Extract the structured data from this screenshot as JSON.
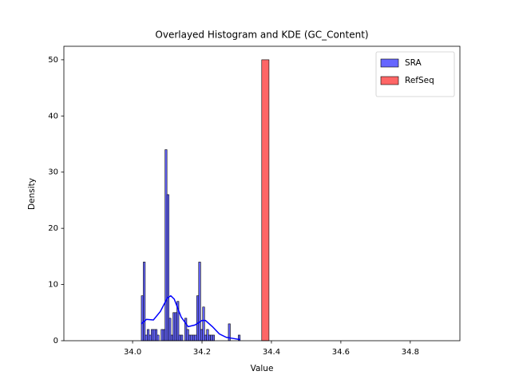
{
  "chart_data": {
    "type": "histogram",
    "title": "Overlayed Histogram and KDE (GC_Content)",
    "x_label": "Value",
    "y_label": "Density",
    "xlim": [
      33.802,
      34.943
    ],
    "ylim": [
      0,
      52.4
    ],
    "xticks": [
      {
        "value": 34,
        "label": "34.0"
      },
      34.2,
      34.4,
      34.6,
      34.8
    ],
    "yticks": [
      0,
      10,
      20,
      30,
      40,
      50
    ],
    "legend": "upper right",
    "series": [
      {
        "name": "SRA",
        "color": "#6666ff",
        "edge_color": "#000000",
        "bins": [
          34.025,
          34.0307,
          34.0364,
          34.0421,
          34.0478,
          34.0535,
          34.0592,
          34.0649,
          34.0706,
          34.0763,
          34.082,
          34.0877,
          34.0934,
          34.0991,
          34.1048,
          34.1105,
          34.1162,
          34.1219,
          34.1276,
          34.1333,
          34.139,
          34.1447,
          34.1504,
          34.1561,
          34.1618,
          34.1675,
          34.1732,
          34.1789,
          34.1846,
          34.1903,
          34.196,
          34.2017,
          34.2074,
          34.2131,
          34.2188,
          34.2245,
          34.2302,
          34.2359,
          34.2416,
          34.2473,
          34.253,
          34.2587,
          34.2644,
          34.2701,
          34.2758,
          34.2815,
          34.2872,
          34.2929,
          34.2986,
          34.3043,
          34.31
        ],
        "values": [
          8,
          14,
          1,
          2,
          1,
          2,
          2,
          2,
          1,
          0,
          2,
          2,
          34,
          26,
          4,
          1,
          5,
          5,
          7,
          1,
          1,
          0,
          4,
          2,
          1,
          1,
          1,
          1,
          8,
          14,
          2,
          6,
          1,
          2,
          1,
          1,
          1,
          0,
          0,
          0,
          0,
          0,
          0,
          0,
          3,
          0,
          0,
          0,
          0,
          1
        ],
        "kde": {
          "color": "#0000ff",
          "x": [
            34.025,
            34.04,
            34.06,
            34.08,
            34.1,
            34.11,
            34.12,
            34.14,
            34.16,
            34.18,
            34.2,
            34.21,
            34.23,
            34.25,
            34.27,
            34.29,
            34.31
          ],
          "values": [
            3.0,
            3.8,
            3.7,
            5.2,
            7.6,
            8.0,
            7.4,
            4.2,
            2.5,
            2.8,
            3.6,
            3.6,
            2.5,
            1.2,
            0.6,
            0.4,
            0.2
          ]
        }
      },
      {
        "name": "RefSeq",
        "color": "#ff6666",
        "edge_color": "#000000",
        "bins": [
          34.372,
          34.393
        ],
        "values": [
          50
        ]
      }
    ]
  }
}
